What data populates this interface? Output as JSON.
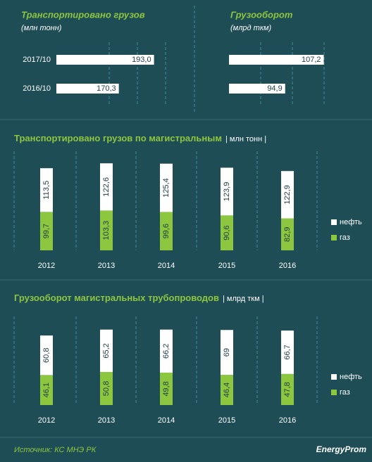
{
  "chart_data": [
    {
      "type": "hbar",
      "title": "Транспортировано грузов",
      "subtitle": "(млн тонн)",
      "categories": [
        "2017/10",
        "2016/10"
      ],
      "values": [
        193.0,
        170.3
      ],
      "value_labels": [
        "193,0",
        "170,3"
      ],
      "color": "#ffffff",
      "xlim": [
        130,
        205
      ]
    },
    {
      "type": "hbar",
      "title": "Грузооборот",
      "subtitle": "(млрд ткм)",
      "categories": [
        "2017/10",
        "2016/10"
      ],
      "values": [
        107.2,
        94.9
      ],
      "value_labels": [
        "107,2",
        "94,9"
      ],
      "color": "#ffffff",
      "xlim": [
        77,
        110
      ]
    },
    {
      "type": "stacked_bar",
      "title": "Транспортировано грузов по магистральным",
      "subtitle": "| млн тонн |",
      "categories": [
        "2012",
        "2013",
        "2014",
        "2015",
        "2016"
      ],
      "series": [
        {
          "name": "газ",
          "color": "#8dc63f",
          "values": [
            99.7,
            103.3,
            99.6,
            90.6,
            82.9
          ],
          "value_labels": [
            "99,7",
            "103,3",
            "99,6",
            "90,6",
            "82,9"
          ]
        },
        {
          "name": "нефть",
          "color": "#ffffff",
          "values": [
            113.5,
            122.6,
            125.4,
            123.9,
            122.9
          ],
          "value_labels": [
            "113,5",
            "122,6",
            "125,4",
            "123,9",
            "122,9"
          ]
        }
      ],
      "ylim": [
        0,
        230
      ]
    },
    {
      "type": "stacked_bar",
      "title": "Грузооборот магистральных трубопроводов",
      "subtitle": "| млрд ткм |",
      "categories": [
        "2012",
        "2013",
        "2014",
        "2015",
        "2016"
      ],
      "series": [
        {
          "name": "газ",
          "color": "#8dc63f",
          "values": [
            46.1,
            50.8,
            49.8,
            46.4,
            47.8
          ],
          "value_labels": [
            "46,1",
            "50,8",
            "49,8",
            "46,4",
            "47,8"
          ]
        },
        {
          "name": "нефть",
          "color": "#ffffff",
          "values": [
            60.8,
            65.2,
            66.2,
            69,
            66.7
          ],
          "value_labels": [
            "60,8",
            "65,2",
            "66,2",
            "69",
            "66,7"
          ]
        }
      ],
      "ylim": [
        0,
        120
      ]
    }
  ],
  "footer": {
    "source": "Источник: КС МНЭ РК",
    "logo": "EnergyProm"
  }
}
